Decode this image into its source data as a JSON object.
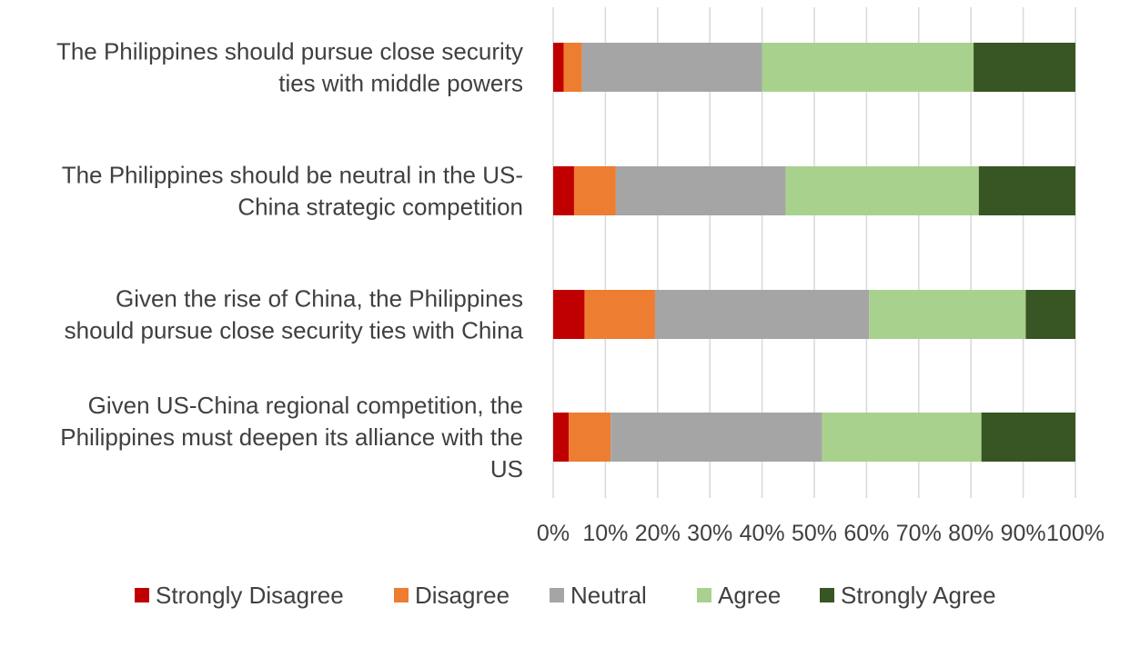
{
  "chart_data": {
    "type": "bar",
    "orientation": "horizontal",
    "stacked": "percent",
    "title": "",
    "xlabel": "",
    "ylabel": "",
    "xlim": [
      0,
      100
    ],
    "grid": true,
    "legend_position": "bottom",
    "x_tick_labels": [
      "0%",
      "10%",
      "20%",
      "30%",
      "40%",
      "50%",
      "60%",
      "70%",
      "80%",
      "90%",
      "100%"
    ],
    "categories": [
      {
        "lines": [
          "The Philippines should pursue close security",
          "ties with middle powers"
        ]
      },
      {
        "lines": [
          "The Philippines should be neutral in the US-",
          "China strategic competition"
        ]
      },
      {
        "lines": [
          "Given the rise of China, the Philippines",
          "should pursue close security ties with China"
        ]
      },
      {
        "lines": [
          "Given US-China regional competition, the",
          "Philippines must deepen its alliance with the",
          "US"
        ]
      }
    ],
    "series": [
      {
        "name": "Strongly Disagree",
        "color": "#c00000",
        "values": [
          2,
          4,
          6,
          3
        ]
      },
      {
        "name": "Disagree",
        "color": "#ed7d31",
        "values": [
          3.5,
          8,
          13.5,
          8
        ]
      },
      {
        "name": "Neutral",
        "color": "#a5a5a5",
        "values": [
          34.5,
          32.5,
          41,
          40.5
        ]
      },
      {
        "name": "Agree",
        "color": "#a9d18e",
        "values": [
          40.5,
          37,
          30,
          30.5
        ]
      },
      {
        "name": "Strongly Agree",
        "color": "#375623",
        "values": [
          19.5,
          18.5,
          9.5,
          18
        ]
      }
    ]
  }
}
